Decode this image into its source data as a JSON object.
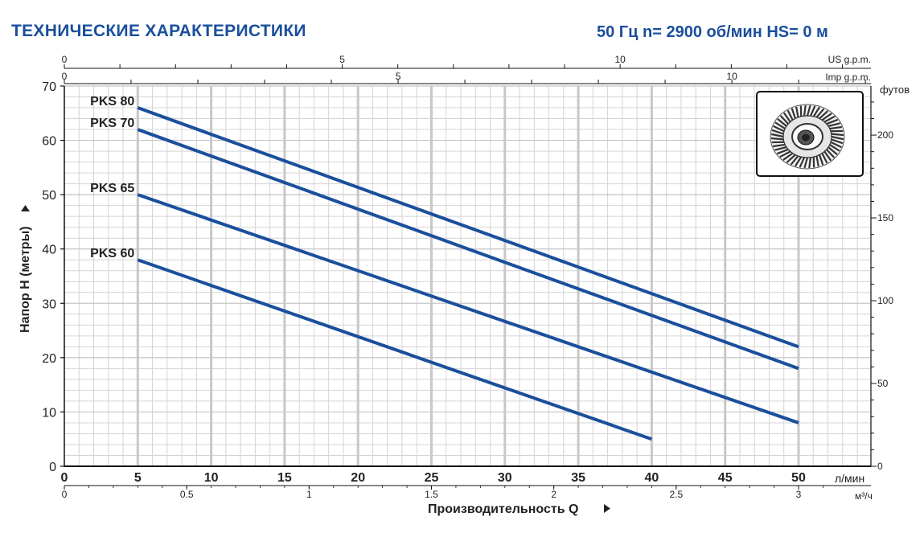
{
  "header": {
    "title": "ТЕХНИЧЕСКИЕ ХАРАКТЕРИСТИКИ",
    "conditions": "50 Гц n= 2900 об/мин HS= 0 м"
  },
  "impeller_image": "pump-impeller-icon",
  "colors": {
    "series": "#1a4f9c",
    "grid": "#d4d4d4",
    "title": "#1a4f9c"
  },
  "chart_data": {
    "type": "line",
    "title": "",
    "xlabel": "Производительность Q",
    "ylabel": "Напор H (метры)",
    "grid": true,
    "xlim": [
      0,
      55
    ],
    "ylim": [
      0,
      70
    ],
    "x_unit": "л/мин",
    "x_ticks": [
      0,
      5,
      10,
      15,
      20,
      25,
      30,
      35,
      40,
      45,
      50
    ],
    "y_ticks": [
      0,
      10,
      20,
      30,
      40,
      50,
      60,
      70
    ],
    "secondary_axes": {
      "us_gpm": {
        "label": "US g.p.m.",
        "ticks": [
          0,
          5,
          10
        ]
      },
      "imp_gpm": {
        "label": "Imp g.p.m.",
        "ticks": [
          0,
          5,
          10
        ]
      },
      "m3h": {
        "label": "м³/ч",
        "ticks": [
          0,
          0.5,
          1,
          1.5,
          2,
          2.5,
          3
        ]
      },
      "feet": {
        "label": "футов",
        "ticks": [
          0,
          50,
          100,
          150,
          200
        ]
      }
    },
    "series": [
      {
        "name": "PKS 80",
        "x": [
          5,
          50
        ],
        "y": [
          66,
          22
        ]
      },
      {
        "name": "PKS 70",
        "x": [
          5,
          50
        ],
        "y": [
          62,
          18
        ]
      },
      {
        "name": "PKS 65",
        "x": [
          5,
          50
        ],
        "y": [
          50,
          8
        ]
      },
      {
        "name": "PKS 60",
        "x": [
          5,
          40
        ],
        "y": [
          38,
          5
        ]
      }
    ]
  }
}
